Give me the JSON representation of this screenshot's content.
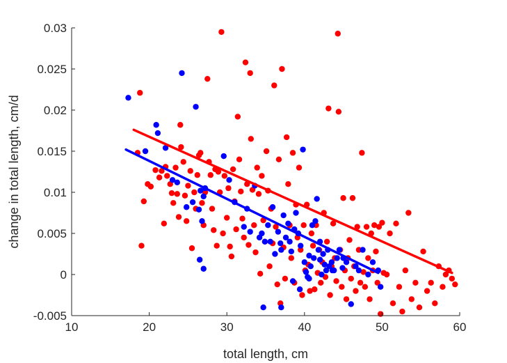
{
  "chart_data": {
    "type": "scatter",
    "title": "",
    "xlabel": "total length, cm",
    "ylabel": "change in total length, cm/d",
    "xlim": [
      10,
      60
    ],
    "ylim": [
      -0.005,
      0.03
    ],
    "xticks": [
      "10",
      "20",
      "30",
      "40",
      "50",
      "60"
    ],
    "yticks": [
      "-0.005",
      "0",
      "0.005",
      "0.01",
      "0.015",
      "0.02",
      "0.025",
      "0.03"
    ],
    "grid": false,
    "box": false,
    "series": [
      {
        "color": "#ff0000",
        "points": [
          [
            18.5,
            0.0148
          ],
          [
            18.8,
            0.0221
          ],
          [
            19.0,
            0.0035
          ],
          [
            19.3,
            0.0089
          ],
          [
            19.8,
            0.011
          ],
          [
            20.2,
            0.0107
          ],
          [
            20.8,
            0.0127
          ],
          [
            21.3,
            0.0118
          ],
          [
            21.6,
            0.0126
          ],
          [
            21.9,
            0.0062
          ],
          [
            22.1,
            0.0131
          ],
          [
            22.3,
            0.012
          ],
          [
            22.7,
            0.011
          ],
          [
            22.9,
            0.0099
          ],
          [
            23.1,
            0.0087
          ],
          [
            23.4,
            0.013
          ],
          [
            23.6,
            0.0098
          ],
          [
            23.8,
            0.007
          ],
          [
            24.0,
            0.0182
          ],
          [
            24.1,
            0.0155
          ],
          [
            24.4,
            0.0137
          ],
          [
            24.6,
            0.0096
          ],
          [
            24.8,
            0.0065
          ],
          [
            25.0,
            0.0108
          ],
          [
            25.3,
            0.0126
          ],
          [
            25.5,
            0.0032
          ],
          [
            25.8,
            0.01
          ],
          [
            26.0,
            0.008
          ],
          [
            26.2,
            0.0121
          ],
          [
            26.4,
            0.0145
          ],
          [
            26.6,
            0.0148
          ],
          [
            26.8,
            0.0087
          ],
          [
            27.0,
            0.006
          ],
          [
            27.2,
            0.01
          ],
          [
            27.5,
            0.0238
          ],
          [
            27.7,
            0.0137
          ],
          [
            27.9,
            0.0121
          ],
          [
            28.1,
            0.008
          ],
          [
            28.3,
            0.0054
          ],
          [
            28.5,
            0.0128
          ],
          [
            28.7,
            0.0035
          ],
          [
            28.9,
            0.0125
          ],
          [
            29.1,
            0.01
          ],
          [
            29.3,
            0.0295
          ],
          [
            29.5,
            0.005
          ],
          [
            29.7,
            0.012
          ],
          [
            30.0,
            0.0069
          ],
          [
            30.2,
            0.0105
          ],
          [
            30.4,
            0.0034
          ],
          [
            30.6,
            0.0022
          ],
          [
            30.8,
            0.0128
          ],
          [
            31.0,
            0.0089
          ],
          [
            31.2,
            0.0055
          ],
          [
            31.4,
            0.0192
          ],
          [
            31.6,
            0.014
          ],
          [
            31.8,
            0.0101
          ],
          [
            32.0,
            0.0068
          ],
          [
            32.2,
            0.0045
          ],
          [
            32.4,
            0.0258
          ],
          [
            32.6,
            0.011
          ],
          [
            32.8,
            0.0036
          ],
          [
            33.0,
            0.0245
          ],
          [
            33.1,
            0.0165
          ],
          [
            33.3,
            0.0103
          ],
          [
            33.5,
            0.006
          ],
          [
            33.7,
            0.0027
          ],
          [
            33.9,
            0.013
          ],
          [
            34.1,
            0.0098
          ],
          [
            34.3,
            0.0001
          ],
          [
            34.5,
            0.012
          ],
          [
            34.7,
            0.0066
          ],
          [
            34.9,
            0.004
          ],
          [
            35.1,
            0.015
          ],
          [
            35.3,
            0.0102
          ],
          [
            35.5,
            0.001
          ],
          [
            35.7,
            0.008
          ],
          [
            35.9,
            0.0038
          ],
          [
            36.1,
            0.023
          ],
          [
            36.3,
            0.0058
          ],
          [
            36.5,
            -0.0012
          ],
          [
            36.7,
            0.014
          ],
          [
            36.9,
            -0.0035
          ],
          [
            37.1,
            0.025
          ],
          [
            37.3,
            0.0033
          ],
          [
            37.5,
            -0.0005
          ],
          [
            37.7,
            0.0167
          ],
          [
            37.9,
            0.011
          ],
          [
            38.1,
            0.006
          ],
          [
            38.3,
            0.002
          ],
          [
            38.5,
            0.0148
          ],
          [
            38.7,
            -0.001
          ],
          [
            38.9,
            0.0085
          ],
          [
            39.1,
            0.0045
          ],
          [
            39.3,
            0.013
          ],
          [
            39.5,
            0.003
          ],
          [
            39.7,
            -0.0025
          ],
          [
            39.9,
            0.006
          ],
          [
            40.1,
            0.0005
          ],
          [
            40.3,
            0.0085
          ],
          [
            40.5,
            0.0012
          ],
          [
            40.7,
            -0.002
          ],
          [
            40.9,
            0.005
          ],
          [
            41.1,
            0.0035
          ],
          [
            41.3,
            -0.0018
          ],
          [
            41.5,
            0.006
          ],
          [
            41.7,
            0.0002
          ],
          [
            41.9,
            0.003
          ],
          [
            42.1,
            -0.001
          ],
          [
            42.3,
            0.0015
          ],
          [
            42.5,
            0.0075
          ],
          [
            42.7,
            -0.0003
          ],
          [
            42.9,
            0.004
          ],
          [
            43.1,
            0.0202
          ],
          [
            43.3,
            -0.0025
          ],
          [
            43.5,
            0.001
          ],
          [
            43.7,
            0.0062
          ],
          [
            43.9,
            0.002
          ],
          [
            44.1,
            -0.0008
          ],
          [
            44.3,
            0.0293
          ],
          [
            44.4,
            0.0198
          ],
          [
            44.6,
            0.003
          ],
          [
            44.8,
            -0.0015
          ],
          [
            45.0,
            0.0093
          ],
          [
            45.2,
            0.0005
          ],
          [
            45.4,
            -0.003
          ],
          [
            45.6,
            0.002
          ],
          [
            45.8,
            0.0042
          ],
          [
            46.0,
            -0.0005
          ],
          [
            46.2,
            0.0093
          ],
          [
            46.4,
            0.001
          ],
          [
            46.6,
            -0.002
          ],
          [
            46.8,
            0.0058
          ],
          [
            47.0,
            0.003
          ],
          [
            47.2,
            -0.001
          ],
          [
            47.4,
            0.0148
          ],
          [
            47.6,
            0.0003
          ],
          [
            47.8,
            -0.0015
          ],
          [
            48.0,
            0.0058
          ],
          [
            48.2,
            0.002
          ],
          [
            48.4,
            -0.003
          ],
          [
            48.6,
            0.005
          ],
          [
            48.8,
            0.0005
          ],
          [
            49.0,
            0.006
          ],
          [
            49.2,
            0.0028
          ],
          [
            49.4,
            -0.001
          ],
          [
            49.6,
            0.0058
          ],
          [
            49.8,
            -0.0048
          ],
          [
            50.0,
            0.0063
          ],
          [
            50.2,
            0.0002
          ],
          [
            50.6,
            0.0
          ],
          [
            51.0,
            0.005
          ],
          [
            51.4,
            -0.0035
          ],
          [
            51.8,
            0.0062
          ],
          [
            52.2,
            -0.0015
          ],
          [
            52.6,
            -0.0045
          ],
          [
            53.0,
            0.0005
          ],
          [
            53.4,
            0.0075
          ],
          [
            53.8,
            -0.003
          ],
          [
            54.3,
            -0.001
          ],
          [
            54.8,
            -0.004
          ],
          [
            55.3,
            0.0028
          ],
          [
            55.8,
            -0.002
          ],
          [
            56.3,
            -0.001
          ],
          [
            56.8,
            -0.0035
          ],
          [
            57.3,
            0.001
          ],
          [
            57.8,
            -0.0015
          ],
          [
            58.2,
            0.0
          ],
          [
            58.6,
            0.0005
          ],
          [
            59.0,
            -0.0005
          ],
          [
            59.4,
            -0.0012
          ]
        ]
      },
      {
        "color": "#0000ff",
        "points": [
          [
            17.3,
            0.0215
          ],
          [
            19.5,
            0.015
          ],
          [
            20.9,
            0.0182
          ],
          [
            21.1,
            0.0172
          ],
          [
            22.1,
            0.0154
          ],
          [
            23.0,
            0.0115
          ],
          [
            23.6,
            0.0112
          ],
          [
            24.2,
            0.0245
          ],
          [
            24.8,
            0.0082
          ],
          [
            25.6,
            0.0088
          ],
          [
            26.0,
            0.0204
          ],
          [
            26.4,
            0.0079
          ],
          [
            26.6,
            0.0102
          ],
          [
            27.0,
            0.0095
          ],
          [
            27.2,
            0.0105
          ],
          [
            26.8,
            0.0065
          ],
          [
            26.5,
            0.0018
          ],
          [
            27.0,
            0.0007
          ],
          [
            29.6,
            0.0144
          ],
          [
            30.3,
            0.0115
          ],
          [
            31.0,
            0.0088
          ],
          [
            32.2,
            0.0058
          ],
          [
            32.6,
            0.008
          ],
          [
            33.0,
            0.0052
          ],
          [
            33.6,
            0.0108
          ],
          [
            34.2,
            0.0045
          ],
          [
            34.5,
            0.005
          ],
          [
            34.9,
            0.004
          ],
          [
            35.3,
            0.006
          ],
          [
            35.6,
            0.004
          ],
          [
            35.9,
            0.0082
          ],
          [
            36.2,
            0.0025
          ],
          [
            36.6,
            0.0052
          ],
          [
            36.9,
            0.0038
          ],
          [
            37.0,
            0.003
          ],
          [
            37.3,
            0.0072
          ],
          [
            37.6,
            0.0045
          ],
          [
            37.9,
            0.0062
          ],
          [
            38.1,
            0.004
          ],
          [
            38.3,
            0.0028
          ],
          [
            38.5,
            -0.0008
          ],
          [
            38.7,
            0.0055
          ],
          [
            38.9,
            0.0075
          ],
          [
            39.2,
            0.005
          ],
          [
            39.5,
            0.0035
          ],
          [
            39.8,
            0.0152
          ],
          [
            40.0,
            0.0015
          ],
          [
            40.2,
            0.0003
          ],
          [
            40.4,
            -0.0003
          ],
          [
            40.6,
            0.0023
          ],
          [
            40.8,
            0.001
          ],
          [
            41.0,
            0.006
          ],
          [
            41.2,
            0.002
          ],
          [
            41.4,
            0.0065
          ],
          [
            41.6,
            0.0092
          ],
          [
            41.8,
            0.003
          ],
          [
            42.0,
            0.0018
          ],
          [
            42.2,
            0.0
          ],
          [
            42.4,
            0.0025
          ],
          [
            42.6,
            0.0012
          ],
          [
            42.8,
            0.0005
          ],
          [
            43.0,
            0.003
          ],
          [
            43.2,
            0.001
          ],
          [
            43.5,
            0.0015
          ],
          [
            43.8,
            0.0005
          ],
          [
            44.2,
            0.002
          ],
          [
            44.5,
            0.003
          ],
          [
            44.9,
            0.0008
          ],
          [
            45.4,
            0.0015
          ],
          [
            46.0,
            -0.0036
          ],
          [
            46.6,
            0.001
          ],
          [
            47.0,
            0.0005
          ],
          [
            47.5,
            0.003
          ],
          [
            48.2,
            0.0
          ],
          [
            48.8,
            0.0015
          ],
          [
            49.5,
            0.0005
          ],
          [
            49.8,
            -0.0015
          ],
          [
            34.7,
            -0.004
          ],
          [
            37.0,
            -0.004
          ],
          [
            39.4,
            -0.0018
          ],
          [
            40.6,
            -0.0005
          ],
          [
            42.0,
            0.004
          ],
          [
            43.6,
            0.0005
          ],
          [
            45.0,
            0.002
          ]
        ]
      }
    ],
    "fit_lines": [
      {
        "color": "#ff0000",
        "x": [
          18.0,
          59.0
        ],
        "y": [
          0.0176,
          0.0002
        ]
      },
      {
        "color": "#0000ff",
        "x": [
          17.0,
          49.5
        ],
        "y": [
          0.0152,
          0.0002
        ]
      }
    ]
  }
}
